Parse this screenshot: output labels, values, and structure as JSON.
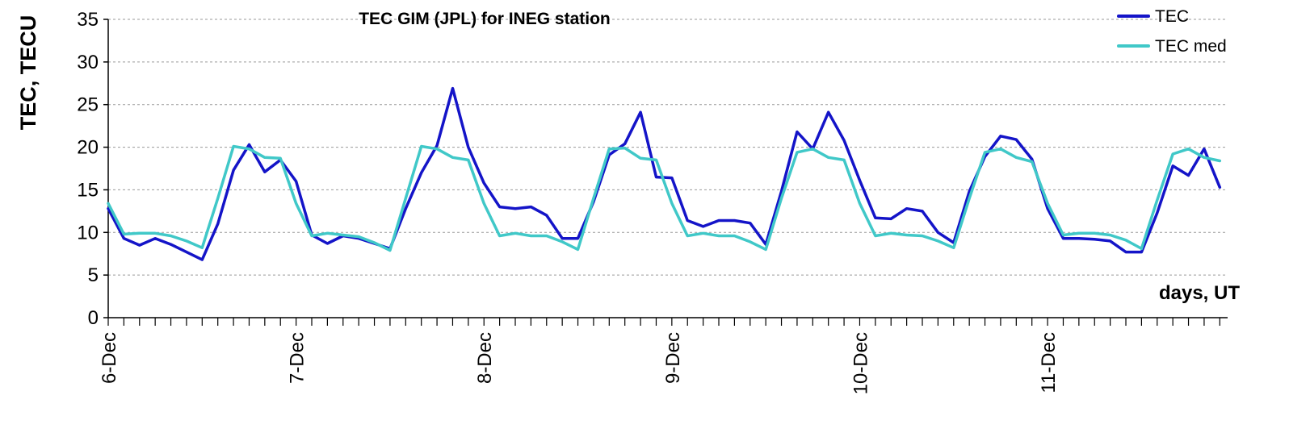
{
  "chart_data": {
    "type": "line",
    "title": "TEC GIM (JPL) for INEG station",
    "xlabel": "days, UT",
    "ylabel": "TEC, TECU",
    "ylim": [
      0,
      35
    ],
    "yticks": [
      0,
      5,
      10,
      15,
      20,
      25,
      30,
      35
    ],
    "xlim": [
      0,
      5.9583
    ],
    "x_tick_labels": [
      {
        "x": 0,
        "label": "6-Dec"
      },
      {
        "x": 1,
        "label": "7-Dec"
      },
      {
        "x": 2,
        "label": "8-Dec"
      },
      {
        "x": 3,
        "label": "9-Dec"
      },
      {
        "x": 4,
        "label": "10-Dec"
      },
      {
        "x": 5,
        "label": "11-Dec"
      }
    ],
    "x_minor_tick_step_hours": 2,
    "grid": true,
    "legend_position": "top-right",
    "sample_step_hours": 2,
    "series": [
      {
        "name": "TEC",
        "color": "#1414c8",
        "values": [
          12.8,
          9.3,
          8.5,
          9.3,
          8.6,
          7.7,
          6.8,
          11.0,
          17.3,
          20.3,
          17.1,
          18.5,
          16.0,
          9.7,
          8.7,
          9.6,
          9.3,
          8.7,
          8.1,
          12.8,
          17.0,
          20.2,
          26.9,
          20.0,
          15.8,
          13.0,
          12.8,
          13.0,
          12.0,
          9.3,
          9.3,
          13.6,
          19.1,
          20.4,
          24.1,
          16.5,
          16.4,
          11.4,
          10.7,
          11.4,
          11.4,
          11.1,
          8.6,
          14.8,
          21.8,
          19.8,
          24.1,
          20.8,
          16.1,
          11.7,
          11.6,
          12.8,
          12.5,
          10.0,
          8.8,
          14.8,
          18.9,
          21.3,
          20.9,
          18.6,
          12.8,
          9.3,
          9.3,
          9.2,
          9.0,
          7.7,
          7.7,
          12.3,
          17.8,
          16.7,
          19.8,
          15.3
        ]
      },
      {
        "name": "TEC med",
        "color": "#40c8c8",
        "values": [
          13.4,
          9.8,
          9.9,
          9.9,
          9.6,
          9.0,
          8.2,
          14.0,
          20.1,
          19.8,
          18.8,
          18.7,
          13.4,
          9.6,
          9.9,
          9.7,
          9.5,
          8.8,
          7.9,
          14.0,
          20.1,
          19.8,
          18.8,
          18.5,
          13.4,
          9.6,
          9.9,
          9.6,
          9.6,
          8.9,
          8.0,
          14.0,
          19.8,
          19.9,
          18.7,
          18.5,
          13.4,
          9.6,
          9.9,
          9.6,
          9.6,
          8.9,
          8.0,
          14.0,
          19.4,
          19.8,
          18.8,
          18.5,
          13.4,
          9.6,
          9.9,
          9.7,
          9.6,
          9.0,
          8.2,
          14.0,
          19.4,
          19.8,
          18.8,
          18.3,
          13.4,
          9.7,
          9.9,
          9.9,
          9.7,
          9.1,
          8.1,
          13.8,
          19.2,
          19.8,
          18.8,
          18.4
        ]
      }
    ]
  }
}
